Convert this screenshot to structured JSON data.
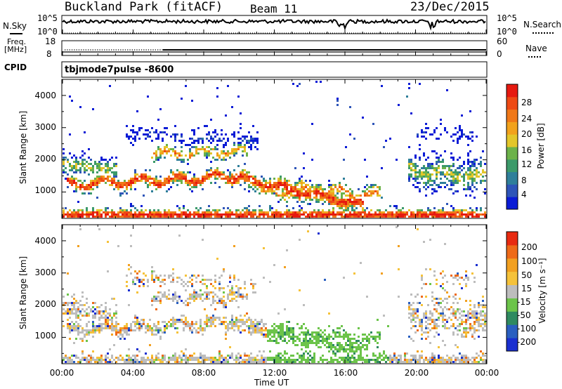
{
  "header": {
    "site": "Buckland Park (fitACF)",
    "beam": "Beam 11",
    "date": "23/Dec/2015"
  },
  "top_panels": {
    "nsky_label": "N.Sky",
    "nsky_ticks": [
      "10^5",
      "10^0"
    ],
    "nsearch_label": "N.Search",
    "nsearch_ticks": [
      "10^5",
      "10^0"
    ],
    "freq_label_top": "Freq.",
    "freq_label_unit": "[MHz]",
    "freq_ticks": [
      "18",
      "8"
    ],
    "nave_label": "Nave",
    "nave_ticks": [
      "60",
      "0"
    ],
    "cpid_label": "CPID",
    "cpid_value": "tbjmode7pulse -8600"
  },
  "icons": {
    "nsky_line": "solid-line-icon",
    "nsearch_line": "dotted-line-icon",
    "nave_line": "dotted-line-icon"
  },
  "chart_data": [
    {
      "type": "heatmap",
      "name": "power-panel",
      "ylabel": "Slant Range [km]",
      "xlabel": "",
      "x_ticks": [
        "00:00",
        "04:00",
        "08:00",
        "12:00",
        "16:00",
        "20:00",
        "00:00"
      ],
      "y_ticks": [
        "1000",
        "2000",
        "3000",
        "4000"
      ],
      "xlim_hours": [
        0,
        24
      ],
      "ylim_km": [
        180,
        4500
      ],
      "colorbar": {
        "label": "Power [dB]",
        "ticks": [
          "28",
          "24",
          "20",
          "16",
          "12",
          "8",
          "4"
        ],
        "colors": [
          "#0b1cd6",
          "#2e55b8",
          "#2f7f9a",
          "#3c9a6a",
          "#6cb24a",
          "#e3c62a",
          "#f2a21c",
          "#f07818",
          "#ee4a14",
          "#e61a10"
        ]
      }
    },
    {
      "type": "heatmap",
      "name": "velocity-panel",
      "ylabel": "Slant Range [km]",
      "xlabel": "Time UT",
      "x_ticks": [
        "00:00",
        "04:00",
        "08:00",
        "12:00",
        "16:00",
        "20:00",
        "00:00"
      ],
      "y_ticks": [
        "1000",
        "2000",
        "3000",
        "4000"
      ],
      "xlim_hours": [
        0,
        24
      ],
      "ylim_km": [
        180,
        4500
      ],
      "colorbar": {
        "label": "Velocity [m s⁻¹]",
        "ticks": [
          "200",
          "100",
          "50",
          "15",
          "-15",
          "-50",
          "-100",
          "-200"
        ],
        "colors": [
          "#1a2fd0",
          "#2a5fc0",
          "#2f8a60",
          "#6cc44a",
          "#bdbdbd",
          "#f5c23a",
          "#f2a020",
          "#ee6a18",
          "#e82a10"
        ]
      }
    }
  ]
}
